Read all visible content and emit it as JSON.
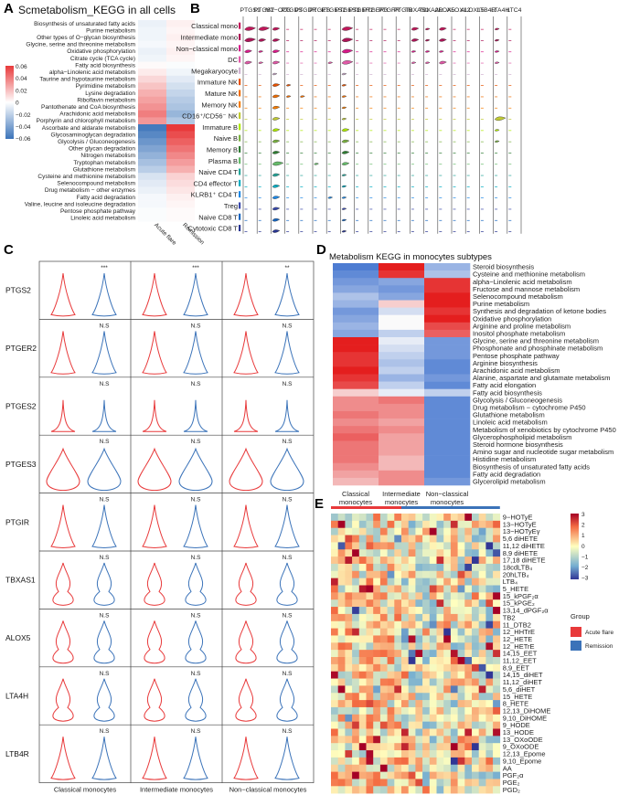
{
  "colors": {
    "red": "#e8393a",
    "blue": "#3b73b9",
    "highlight": "#e02020"
  },
  "panelA": {
    "label": "A",
    "title": "Scmetabolism_KEGG in all cells",
    "rows": [
      "Biosynthesis of unsaturated fatty acids",
      "Purine metabolism",
      "Other types of O−glycan biosynthesis",
      "Glycine, serine and threonine metabolism",
      "Oxidative phosphorylation",
      "Citrate cycle (TCA cycle)",
      "Fatty acid biosynthesis",
      "alpha−Linolenic acid metabolism",
      "Taurine and hypotaurine metabolism",
      "Pyrimidine metabolism",
      "Lysine degradation",
      "Riboflavin metabolism",
      "Pantothenate and CoA biosynthesis",
      "Arachidonic acid metabolism",
      "Porphyrin and chlorophyll metabolism",
      "Ascorbate and aldarate metabolism",
      "Glycosaminoglycan degradation",
      "Glycolysis / Gluconeogenesis",
      "Other glycan degradation",
      "Nitrogen metabolism",
      "Tryptophan metabolism",
      "Glutathione metabolism",
      "Cysteine and methionine metabolism",
      "Selenocompound metabolism",
      "Drug metabolism − other enzymes",
      "Fatty acid degradation",
      "Valine, leucine and isoleucine degradation",
      "Pentose phosphate pathway",
      "Linoleic acid metabolism"
    ],
    "highlighted": [
      0,
      1,
      13
    ],
    "columns": [
      "Acute flare",
      "Remission"
    ],
    "values": [
      [
        -0.004,
        0.003
      ],
      [
        -0.003,
        0.002
      ],
      [
        -0.003,
        0.003
      ],
      [
        -0.002,
        0.002
      ],
      [
        -0.004,
        0.003
      ],
      [
        -0.003,
        0.002
      ],
      [
        0.001,
        -0.001
      ],
      [
        0.004,
        -0.003
      ],
      [
        0.008,
        -0.006
      ],
      [
        0.012,
        -0.009
      ],
      [
        0.016,
        -0.012
      ],
      [
        0.019,
        -0.015
      ],
      [
        0.022,
        -0.017
      ],
      [
        0.026,
        -0.021
      ],
      [
        0.021,
        -0.016
      ],
      [
        -0.038,
        0.04
      ],
      [
        -0.034,
        0.036
      ],
      [
        -0.03,
        0.032
      ],
      [
        -0.026,
        0.028
      ],
      [
        -0.022,
        0.024
      ],
      [
        -0.018,
        0.02
      ],
      [
        -0.014,
        0.016
      ],
      [
        -0.008,
        0.009
      ],
      [
        -0.006,
        0.007
      ],
      [
        -0.004,
        0.005
      ],
      [
        -0.002,
        0.003
      ],
      [
        -0.002,
        0.002
      ],
      [
        -0.001,
        0.001
      ],
      [
        -0.001,
        0.001
      ]
    ],
    "legend_ticks": [
      "0.06",
      "0.04",
      "0.02",
      "0",
      "−0.02",
      "−0.04",
      "−0.06"
    ]
  },
  "panelB": {
    "label": "B",
    "genes": [
      "PTGS1",
      "PTGS2",
      "MT−CO3",
      "PTGDS",
      "PTGDR",
      "PTGES",
      "PTGES2",
      "PTGES3",
      "PTGER2",
      "PTGER3",
      "PTGFR",
      "PTGIR",
      "TBXAS1",
      "TBXA2R",
      "ALOX5",
      "ALOX12",
      "ALOX15",
      "LTB4R",
      "LTA4H",
      "LTC4"
    ],
    "cells": [
      "Classical mono",
      "Intermediate mono",
      "Non−classical mono",
      "DC",
      "Megakaryocyte",
      "Immature NK",
      "Mature NK",
      "Memory NK",
      "CD16⁺/CD56⁻ NK",
      "Immature B",
      "Naive B",
      "Memory B",
      "Plasma B",
      "Naive CD4 T",
      "CD4 effector T",
      "KLRB1⁺ CD4 T",
      "Treg",
      "Naive CD8 T",
      "Cytotoxic CD8 T"
    ],
    "cell_colors": [
      "#c2185b",
      "#ad1457",
      "#d81b8a",
      "#e15aa8",
      "#d0b0d0",
      "#e65100",
      "#ef6c00",
      "#f57c00",
      "#c0ca33",
      "#aeea00",
      "#7cb342",
      "#2e7d32",
      "#66bb6a",
      "#26a69a",
      "#00acc1",
      "#1e88e5",
      "#3949ab",
      "#1565c0",
      "#283593"
    ],
    "expression": [
      [
        3,
        3,
        2,
        0,
        0,
        0,
        0,
        3,
        0,
        0,
        0,
        0,
        2,
        1,
        2,
        0,
        0,
        0,
        1,
        0
      ],
      [
        3,
        2,
        2,
        0,
        0,
        0,
        0,
        3,
        0,
        0,
        0,
        0,
        2,
        1,
        2,
        0,
        0,
        0,
        1,
        0
      ],
      [
        2,
        1,
        2,
        0,
        0,
        0,
        0,
        3,
        0,
        0,
        0,
        0,
        1,
        1,
        1,
        0,
        0,
        0,
        1,
        0
      ],
      [
        2,
        1,
        2,
        0,
        0,
        0,
        1,
        3,
        0,
        0,
        0,
        0,
        1,
        1,
        2,
        0,
        0,
        0,
        1,
        0
      ],
      [
        0,
        0,
        1,
        0,
        0,
        0,
        0,
        1,
        0,
        0,
        0,
        0,
        0,
        0,
        0,
        0,
        0,
        0,
        0,
        0
      ],
      [
        0,
        0,
        2,
        1,
        0,
        0,
        0,
        1,
        0,
        0,
        0,
        0,
        0,
        0,
        0,
        0,
        0,
        0,
        0,
        0
      ],
      [
        0,
        0,
        2,
        1,
        1,
        0,
        0,
        1,
        0,
        0,
        0,
        0,
        0,
        0,
        0,
        0,
        0,
        0,
        0,
        0
      ],
      [
        0,
        0,
        2,
        0,
        0,
        0,
        0,
        1,
        0,
        0,
        0,
        0,
        0,
        0,
        0,
        0,
        0,
        0,
        0,
        0
      ],
      [
        0,
        0,
        2,
        0,
        0,
        0,
        0,
        1,
        0,
        0,
        0,
        0,
        0,
        0,
        0,
        0,
        0,
        0,
        3,
        0
      ],
      [
        0,
        0,
        2,
        0,
        0,
        0,
        0,
        2,
        0,
        0,
        0,
        0,
        0,
        0,
        0,
        0,
        0,
        0,
        1,
        0
      ],
      [
        0,
        0,
        2,
        0,
        0,
        0,
        0,
        2,
        0,
        0,
        0,
        0,
        0,
        0,
        0,
        0,
        0,
        0,
        1,
        0
      ],
      [
        0,
        0,
        2,
        0,
        0,
        0,
        0,
        2,
        0,
        0,
        0,
        0,
        0,
        0,
        0,
        0,
        0,
        0,
        0,
        0
      ],
      [
        0,
        0,
        3,
        0,
        0,
        1,
        0,
        2,
        0,
        0,
        0,
        0,
        0,
        0,
        0,
        0,
        0,
        0,
        0,
        0
      ],
      [
        0,
        0,
        2,
        0,
        0,
        0,
        0,
        1,
        0,
        0,
        0,
        0,
        0,
        0,
        0,
        0,
        0,
        0,
        0,
        0
      ],
      [
        0,
        0,
        2,
        0,
        0,
        0,
        0,
        1,
        0,
        0,
        0,
        0,
        0,
        0,
        0,
        0,
        0,
        0,
        0,
        0
      ],
      [
        0,
        0,
        2,
        0,
        0,
        0,
        1,
        1,
        0,
        0,
        0,
        0,
        0,
        0,
        0,
        0,
        0,
        0,
        0,
        0
      ],
      [
        0,
        0,
        2,
        0,
        0,
        0,
        0,
        1,
        0,
        0,
        0,
        0,
        0,
        0,
        0,
        0,
        0,
        0,
        0,
        0
      ],
      [
        0,
        0,
        2,
        0,
        0,
        0,
        0,
        1,
        0,
        0,
        0,
        0,
        0,
        0,
        0,
        0,
        0,
        0,
        0,
        0
      ],
      [
        0,
        0,
        2,
        0,
        0,
        0,
        0,
        1,
        0,
        0,
        0,
        0,
        0,
        0,
        0,
        0,
        0,
        0,
        0,
        0
      ]
    ]
  },
  "panelC": {
    "label": "C",
    "genes": [
      "PTGS2",
      "PTGER2",
      "PTGES2",
      "PTGES3",
      "PTGIR",
      "TBXAS1",
      "ALOX5",
      "LTA4H",
      "LTB4R"
    ],
    "groups": [
      "Classical monocytes",
      "Intermediate monocytes",
      "Non−classical monocytes"
    ],
    "significance": [
      [
        "***",
        "***",
        "**"
      ],
      [
        "N.S",
        "N.S",
        "N.S"
      ],
      [
        "N.S",
        "N.S",
        "N.S"
      ],
      [
        "N.S",
        "N.S",
        "N.S"
      ],
      [
        "N.S",
        "N.S",
        "N.S"
      ],
      [
        "N.S",
        "N.S",
        "N.S"
      ],
      [
        "N.S",
        "N.S",
        "N.S"
      ],
      [
        "N.S",
        "N.S",
        "N.S"
      ],
      [
        "N.S",
        "N.S",
        "N.S"
      ]
    ],
    "shapes": [
      "spike",
      "spike",
      "flat",
      "round",
      "spike",
      "violin",
      "violin",
      "violin",
      "spike"
    ]
  },
  "panelD": {
    "label": "D",
    "title": "Metabolism KEGG in monocytes subtypes",
    "columns": [
      "Classical\nmonocytes",
      "Intermediate\nmonocytes",
      "Non−classical\nmonocytes"
    ],
    "rows": [
      "Steroid biosynthesis",
      "Cysteine and methionine metabolism",
      "alpha−Linolenic acid metabolism",
      "Fructose and mannose metabolism",
      "Selenocompound metabolism",
      "Purine metabolism",
      "Synthesis and degradation of ketone bodies",
      "Oxidative phosphorylation",
      "Arginine and proline metabolism",
      "Inositol phosphate metabolism",
      "Glycine, serine and threonine metabolism",
      "Phosphonate and phosphinate metabolism",
      "Pentose phosphate pathway",
      "Arginine biosynthesis",
      "Arachidonic acid metabolism",
      "Alanine, aspartate and glutamate metabolism",
      "Fatty acid elongation",
      "Fatty acid biosynthesis",
      "Glycolysis / Gluconeogenesis",
      "Drug metabolism − cytochrome P450",
      "Glutathione metabolism",
      "Linoleic acid metabolism",
      "Metabolism of xenobiotics by cytochrome P450",
      "Glycerophospholipid metabolism",
      "Steroid hormone biosynthesis",
      "Amino sugar and nucleotide sugar metabolism",
      "Histidine metabolism",
      "Biosynthesis of unsaturated fatty acids",
      "Fatty acid degradation",
      "Glycerolipid metabolism"
    ],
    "highlighted": [
      4,
      5,
      7,
      14
    ],
    "values": [
      [
        -0.9,
        1.0,
        -0.5
      ],
      [
        -0.8,
        0.9,
        -0.4
      ],
      [
        -0.7,
        -0.6,
        0.9
      ],
      [
        -0.6,
        -0.7,
        0.9
      ],
      [
        -0.4,
        -0.6,
        1.0
      ],
      [
        -0.5,
        0.2,
        1.0
      ],
      [
        -0.7,
        -0.2,
        0.9
      ],
      [
        -0.6,
        0.0,
        1.0
      ],
      [
        -0.5,
        0.0,
        0.8
      ],
      [
        -0.6,
        -0.3,
        0.7
      ],
      [
        1.0,
        -0.1,
        -0.7
      ],
      [
        1.0,
        -0.2,
        -0.7
      ],
      [
        0.9,
        -0.3,
        -0.7
      ],
      [
        0.9,
        -0.4,
        -0.8
      ],
      [
        1.0,
        -0.3,
        -0.8
      ],
      [
        0.9,
        -0.5,
        -0.7
      ],
      [
        0.8,
        -0.3,
        -0.8
      ],
      [
        0.2,
        -0.1,
        -0.3
      ],
      [
        0.5,
        0.6,
        -0.8
      ],
      [
        0.5,
        0.5,
        -0.8
      ],
      [
        0.6,
        0.5,
        -0.8
      ],
      [
        0.5,
        0.4,
        -0.8
      ],
      [
        0.6,
        0.5,
        -0.8
      ],
      [
        0.7,
        0.4,
        -0.8
      ],
      [
        0.6,
        0.4,
        -0.8
      ],
      [
        0.6,
        0.4,
        -0.8
      ],
      [
        0.6,
        0.3,
        -0.8
      ],
      [
        0.5,
        0.3,
        -0.8
      ],
      [
        0.4,
        0.5,
        -0.8
      ],
      [
        0.3,
        0.5,
        -0.7
      ]
    ]
  },
  "panelE": {
    "label": "E",
    "rows": [
      "9−HOTyE",
      "13−HOTyE",
      "13−HOTyEγ",
      "5,6 diHETE",
      "11,12 diHETE",
      "8,9 diHETE",
      "17,18 diHETE",
      "18cdLTB₄",
      "20hLTB₄",
      "LTB₄",
      "5_HETE",
      "15_kPGF₂α",
      "15_kPGE₂",
      "13,14_dPGF₂α",
      "TB2",
      "11_DTB2",
      "12_HHTrE",
      "12_HETE",
      "12_HETrE",
      "14,15_EET",
      "11,12_EET",
      "8,9_EET",
      "14,15_diHET",
      "11,12_diHET",
      "5,6_diHET",
      "15_HETE",
      "8_HETE",
      "12,13_DiHOME",
      "9,10_DiHOME",
      "9_HODE",
      "13_HODE",
      "13_OXoODE",
      "9_OXoODE",
      "12,13_Epome",
      "9,10_Epome",
      "AA",
      "PGF₂α",
      "PGE₂",
      "PGD₂"
    ],
    "highlighted": [
      9,
      35
    ],
    "n_cols": 24,
    "n_acute": 10,
    "legend_title": "Group",
    "legend_items": [
      "Acute flare",
      "Remission"
    ],
    "scale_ticks": [
      "3",
      "2",
      "1",
      "0",
      "−1",
      "−2",
      "−3"
    ]
  }
}
